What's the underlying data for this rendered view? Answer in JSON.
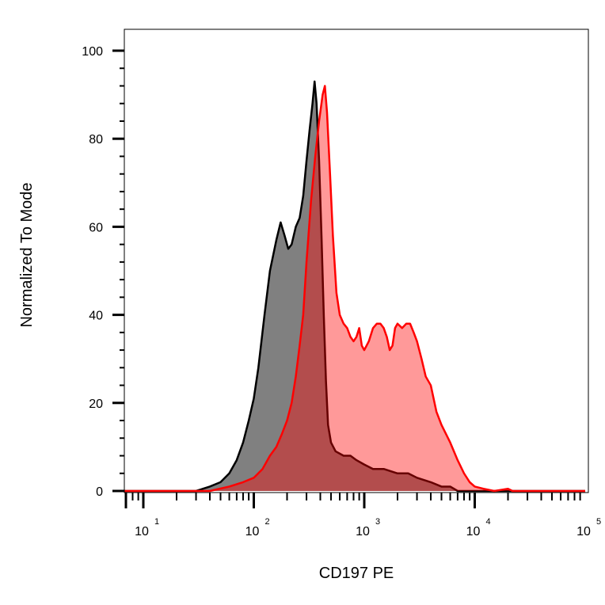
{
  "chart_data": {
    "type": "area",
    "title": "",
    "xlabel": "CD197 PE",
    "ylabel": "Normalized To Mode",
    "xscale": "log",
    "xlim": [
      6,
      100000
    ],
    "ylim": [
      0,
      100
    ],
    "x_ticks": [
      {
        "base": "10",
        "exp": "1",
        "value": 10
      },
      {
        "base": "10",
        "exp": "2",
        "value": 100
      },
      {
        "base": "10",
        "exp": "3",
        "value": 1000
      },
      {
        "base": "10",
        "exp": "4",
        "value": 10000
      },
      {
        "base": "10",
        "exp": "5",
        "value": 100000
      }
    ],
    "y_ticks": [
      "0",
      "20",
      "40",
      "60",
      "80",
      "100"
    ],
    "grid": false,
    "legend": "none",
    "series": [
      {
        "color": "#000000",
        "fill": "#808080",
        "points": [
          [
            6,
            0
          ],
          [
            30,
            0
          ],
          [
            40,
            1
          ],
          [
            50,
            2
          ],
          [
            60,
            4
          ],
          [
            70,
            7
          ],
          [
            80,
            11
          ],
          [
            90,
            16
          ],
          [
            100,
            21
          ],
          [
            110,
            28
          ],
          [
            125,
            40
          ],
          [
            140,
            50
          ],
          [
            160,
            57
          ],
          [
            175,
            61
          ],
          [
            190,
            58
          ],
          [
            205,
            55
          ],
          [
            220,
            56
          ],
          [
            240,
            60
          ],
          [
            260,
            62
          ],
          [
            280,
            67
          ],
          [
            300,
            75
          ],
          [
            320,
            82
          ],
          [
            340,
            88
          ],
          [
            355,
            93
          ],
          [
            370,
            88
          ],
          [
            390,
            75
          ],
          [
            410,
            58
          ],
          [
            430,
            40
          ],
          [
            450,
            25
          ],
          [
            470,
            15
          ],
          [
            500,
            11
          ],
          [
            550,
            9
          ],
          [
            650,
            8
          ],
          [
            750,
            8
          ],
          [
            850,
            7
          ],
          [
            1000,
            6
          ],
          [
            1200,
            5
          ],
          [
            1500,
            5
          ],
          [
            2000,
            4
          ],
          [
            2500,
            4
          ],
          [
            3000,
            3
          ],
          [
            4000,
            2
          ],
          [
            5000,
            1
          ],
          [
            6000,
            1
          ],
          [
            7000,
            0
          ],
          [
            8000,
            0
          ],
          [
            100000,
            0
          ]
        ]
      },
      {
        "color": "#ff0000",
        "fill": "rgba(255,0,0,0.4)",
        "points": [
          [
            6,
            0
          ],
          [
            40,
            0
          ],
          [
            60,
            1
          ],
          [
            80,
            2
          ],
          [
            100,
            3
          ],
          [
            120,
            5
          ],
          [
            140,
            8
          ],
          [
            160,
            10
          ],
          [
            180,
            13
          ],
          [
            200,
            16
          ],
          [
            220,
            20
          ],
          [
            240,
            26
          ],
          [
            260,
            33
          ],
          [
            280,
            40
          ],
          [
            300,
            52
          ],
          [
            330,
            66
          ],
          [
            360,
            76
          ],
          [
            390,
            84
          ],
          [
            420,
            90
          ],
          [
            440,
            92
          ],
          [
            460,
            86
          ],
          [
            490,
            72
          ],
          [
            520,
            58
          ],
          [
            560,
            45
          ],
          [
            600,
            40
          ],
          [
            650,
            38
          ],
          [
            700,
            37
          ],
          [
            750,
            35
          ],
          [
            800,
            34
          ],
          [
            850,
            35
          ],
          [
            900,
            37
          ],
          [
            950,
            33
          ],
          [
            1000,
            32
          ],
          [
            1100,
            34
          ],
          [
            1200,
            37
          ],
          [
            1300,
            38
          ],
          [
            1400,
            38
          ],
          [
            1500,
            37
          ],
          [
            1600,
            35
          ],
          [
            1700,
            32
          ],
          [
            1800,
            33
          ],
          [
            1900,
            37
          ],
          [
            2000,
            38
          ],
          [
            2200,
            37
          ],
          [
            2400,
            38
          ],
          [
            2600,
            38
          ],
          [
            2800,
            36
          ],
          [
            3000,
            34
          ],
          [
            3300,
            30
          ],
          [
            3600,
            26
          ],
          [
            4000,
            24
          ],
          [
            4500,
            18
          ],
          [
            5000,
            15
          ],
          [
            6000,
            11
          ],
          [
            7000,
            7
          ],
          [
            8000,
            4
          ],
          [
            9000,
            2
          ],
          [
            10000,
            1
          ],
          [
            12000,
            0.5
          ],
          [
            15000,
            0
          ],
          [
            20000,
            0.5
          ],
          [
            22000,
            0
          ],
          [
            100000,
            0
          ]
        ]
      }
    ]
  }
}
